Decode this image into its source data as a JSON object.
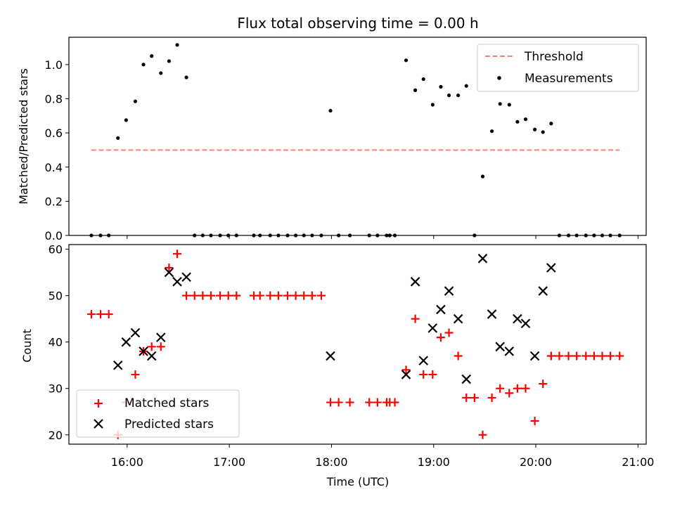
{
  "title": "Flux total observing time = 0.00 h",
  "colors": {
    "threshold": "#ff7f7f",
    "measurements": "#000000",
    "matched": "#ff0000",
    "predicted": "#000000"
  },
  "chart_data": [
    {
      "type": "scatter",
      "ylabel": "Matched/Predicted stars",
      "xlim": [
        15.43,
        21.08
      ],
      "ylim": [
        0.0,
        1.16
      ],
      "x_tick_labels_visible": false,
      "yticks": [
        0.0,
        0.2,
        0.4,
        0.6,
        0.8,
        1.0
      ],
      "ytick_labels": [
        "0.0",
        "0.2",
        "0.4",
        "0.6",
        "0.8",
        "1.0"
      ],
      "legend": {
        "position": "top-right",
        "entries": [
          "Threshold",
          "Measurements"
        ]
      },
      "series": [
        {
          "name": "Threshold",
          "kind": "dashed-line",
          "x": [
            15.65,
            20.82
          ],
          "y": [
            0.5,
            0.5
          ]
        },
        {
          "name": "Measurements",
          "kind": "dots",
          "x": [
            15.65,
            15.74,
            15.82,
            15.91,
            15.99,
            16.08,
            16.16,
            16.24,
            16.33,
            16.41,
            16.49,
            16.58,
            16.66,
            16.74,
            16.82,
            16.91,
            16.99,
            17.07,
            17.24,
            17.3,
            17.4,
            17.48,
            17.57,
            17.65,
            17.73,
            17.81,
            17.9,
            17.99,
            18.07,
            18.18,
            18.37,
            18.45,
            18.54,
            18.57,
            18.62,
            18.73,
            18.82,
            18.9,
            18.99,
            19.07,
            19.15,
            19.24,
            19.32,
            19.4,
            19.48,
            19.57,
            19.65,
            19.74,
            19.82,
            19.9,
            19.99,
            20.07,
            20.15,
            20.23,
            20.32,
            20.4,
            20.49,
            20.57,
            20.65,
            20.73,
            20.82
          ],
          "y": [
            0.0,
            0.0,
            0.0,
            0.57,
            0.675,
            0.785,
            1.0,
            1.05,
            0.95,
            1.02,
            1.115,
            0.925,
            0.0,
            0.0,
            0.0,
            0.0,
            0.0,
            0.0,
            0.0,
            0.0,
            0.0,
            0.0,
            0.0,
            0.0,
            0.0,
            0.0,
            0.0,
            0.73,
            0.0,
            0.0,
            0.0,
            0.0,
            0.0,
            0.0,
            0.0,
            1.025,
            0.85,
            0.915,
            0.765,
            0.87,
            0.82,
            0.82,
            0.875,
            0.0,
            0.345,
            0.61,
            0.77,
            0.765,
            0.665,
            0.68,
            0.62,
            0.605,
            0.655,
            0.0,
            0.0,
            0.0,
            0.0,
            0.0,
            0.0,
            0.0,
            0.0
          ]
        }
      ]
    },
    {
      "type": "scatter",
      "ylabel": "Count",
      "xlabel": "Time (UTC)",
      "xlim": [
        15.43,
        21.08
      ],
      "ylim": [
        18.0,
        61.0
      ],
      "xticks": [
        16,
        17,
        18,
        19,
        20,
        21
      ],
      "xtick_labels": [
        "16:00",
        "17:00",
        "18:00",
        "19:00",
        "20:00",
        "21:00"
      ],
      "yticks": [
        20,
        30,
        40,
        50,
        60
      ],
      "ytick_labels": [
        "20",
        "30",
        "40",
        "50",
        "60"
      ],
      "legend": {
        "position": "bottom-left",
        "entries": [
          "Matched stars",
          "Predicted stars"
        ]
      },
      "series": [
        {
          "name": "Matched stars",
          "marker": "plus",
          "x": [
            15.65,
            15.74,
            15.82,
            15.91,
            15.99,
            16.08,
            16.16,
            16.24,
            16.33,
            16.41,
            16.49,
            16.58,
            16.66,
            16.74,
            16.82,
            16.91,
            16.99,
            17.07,
            17.24,
            17.3,
            17.4,
            17.48,
            17.57,
            17.65,
            17.73,
            17.81,
            17.9,
            17.99,
            18.07,
            18.18,
            18.37,
            18.45,
            18.54,
            18.57,
            18.62,
            18.73,
            18.82,
            18.9,
            18.99,
            19.07,
            19.15,
            19.24,
            19.32,
            19.4,
            19.48,
            19.57,
            19.65,
            19.74,
            19.82,
            19.9,
            19.99,
            20.07,
            20.15,
            20.23,
            20.32,
            20.4,
            20.49,
            20.57,
            20.65,
            20.73,
            20.82
          ],
          "y": [
            46,
            46,
            46,
            20,
            27,
            33,
            38,
            39,
            39,
            56,
            59,
            50,
            50,
            50,
            50,
            50,
            50,
            50,
            50,
            50,
            50,
            50,
            50,
            50,
            50,
            50,
            50,
            27,
            27,
            27,
            27,
            27,
            27,
            27,
            27,
            34,
            45,
            33,
            33,
            41,
            42,
            37,
            28,
            28,
            20,
            28,
            30,
            29,
            30,
            30,
            23,
            31,
            37,
            37,
            37,
            37,
            37,
            37,
            37,
            37,
            37
          ]
        },
        {
          "name": "Predicted stars",
          "marker": "x",
          "x": [
            15.91,
            15.99,
            16.08,
            16.16,
            16.24,
            16.33,
            16.41,
            16.49,
            16.58,
            17.99,
            18.73,
            18.82,
            18.9,
            18.99,
            19.07,
            19.15,
            19.24,
            19.32,
            19.48,
            19.57,
            19.65,
            19.74,
            19.82,
            19.9,
            19.99,
            20.07,
            20.15
          ],
          "y": [
            35,
            40,
            42,
            38,
            37,
            41,
            55,
            53,
            54,
            37,
            33,
            53,
            36,
            43,
            47,
            51,
            45,
            32,
            58,
            46,
            39,
            38,
            45,
            44,
            37,
            51,
            56
          ]
        }
      ]
    }
  ]
}
